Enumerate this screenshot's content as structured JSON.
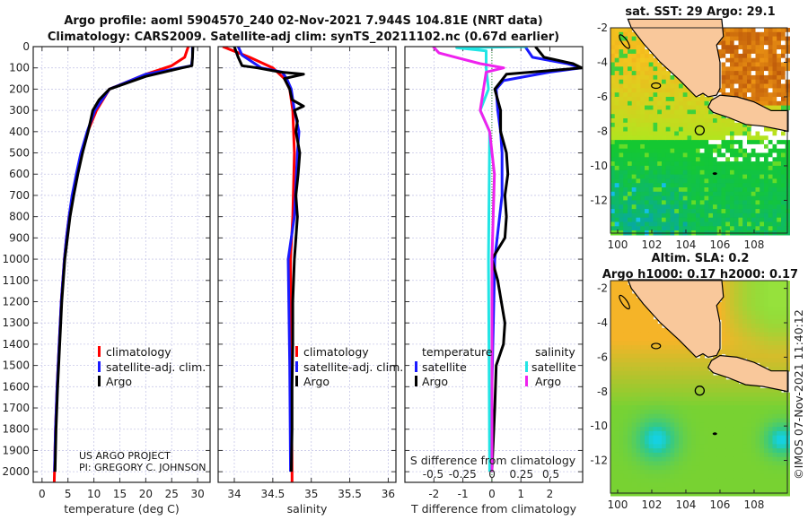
{
  "title": {
    "line1": "Argo profile: aoml 5904570_240 02-Nov-2021 7.944S 104.81E (NRT data)",
    "line2": "Climatology: CARS2009. Satellite-adj clim: synTS_20211102.nc (0.67d earlier)"
  },
  "credit": "US ARGO PROJECT",
  "pi": "PI: GREGORY C. JOHNSON",
  "copyright": "©IMOS 07-Nov-2021 11:40:12",
  "colors": {
    "climatology": "#ff0000",
    "satellite": "#1a1aff",
    "argo": "#000000",
    "s_satellite": "#22e5e5",
    "s_argo": "#ee22ee",
    "land": "#f9c89b"
  },
  "chart_data": [
    {
      "type": "line",
      "name": "temperature",
      "xlabel": "temperature (deg C)",
      "ylabel": "",
      "xlim": [
        -1.7,
        32.4
      ],
      "ylim": [
        2050,
        0
      ],
      "xticks": [
        "0",
        "5",
        "10",
        "15",
        "20",
        "25",
        "30"
      ],
      "xtick_values": [
        0,
        5,
        10,
        15,
        20,
        25,
        30
      ],
      "yticks": [
        "0",
        "100",
        "200",
        "300",
        "400",
        "500",
        "600",
        "700",
        "800",
        "900",
        "1000",
        "1100",
        "1200",
        "1300",
        "1400",
        "1500",
        "1600",
        "1700",
        "1800",
        "1900",
        "2000"
      ],
      "grid": true,
      "legend": [
        "climatology",
        "satellite-adj. clim.",
        "Argo"
      ],
      "series": [
        {
          "name": "climatology",
          "color": "#ff0000",
          "depth": [
            0,
            50,
            90,
            130,
            200,
            300,
            400,
            500,
            600,
            700,
            800,
            900,
            1000,
            1200,
            1400,
            1600,
            1800,
            2000,
            2050
          ],
          "values": [
            28.2,
            27.5,
            25,
            20,
            13,
            10.5,
            8.8,
            7.6,
            6.7,
            5.9,
            5.2,
            4.7,
            4.3,
            3.7,
            3.3,
            2.9,
            2.6,
            2.4,
            2.35
          ]
        },
        {
          "name": "satellite-adj. clim.",
          "color": "#1a1aff",
          "depth": [
            0,
            50,
            90,
            130,
            200,
            300,
            400,
            500,
            600,
            700,
            800,
            900,
            1000,
            1200,
            1400,
            1600,
            1800,
            2000
          ],
          "values": [
            29.0,
            29.0,
            28.8,
            20,
            13,
            10.2,
            8.7,
            7.5,
            6.6,
            5.8,
            5.2,
            4.7,
            4.3,
            3.7,
            3.3,
            2.9,
            2.6,
            2.4
          ]
        },
        {
          "name": "Argo",
          "color": "#000000",
          "depth": [
            0,
            50,
            90,
            100,
            140,
            200,
            250,
            300,
            400,
            500,
            600,
            700,
            800,
            900,
            1000,
            1200,
            1400,
            1600,
            1800,
            2000
          ],
          "values": [
            29.1,
            29.0,
            28.9,
            27,
            20,
            13,
            11,
            9.8,
            8.9,
            7.8,
            6.9,
            6.1,
            5.4,
            4.9,
            4.4,
            3.8,
            3.4,
            3.0,
            2.7,
            2.5
          ]
        }
      ]
    },
    {
      "type": "line",
      "name": "salinity",
      "xlabel": "salinity",
      "xlim": [
        33.79,
        36.1
      ],
      "ylim": [
        2050,
        0
      ],
      "xticks": [
        "34",
        "34.5",
        "35",
        "35.5",
        "36"
      ],
      "xtick_values": [
        34,
        34.5,
        35,
        35.5,
        36
      ],
      "grid": true,
      "legend": [
        "climatology",
        "satellite-adj. clim.",
        "Argo"
      ],
      "series": [
        {
          "name": "climatology",
          "color": "#ff0000",
          "depth": [
            0,
            50,
            100,
            150,
            200,
            300,
            500,
            800,
            1000,
            1500,
            2000,
            2050
          ],
          "values": [
            33.85,
            34.2,
            34.5,
            34.65,
            34.72,
            34.76,
            34.78,
            34.76,
            34.73,
            34.74,
            34.75,
            34.75
          ]
        },
        {
          "name": "satellite-adj. clim.",
          "color": "#1a1aff",
          "depth": [
            0,
            40,
            100,
            120,
            150,
            200,
            300,
            400,
            500,
            800,
            1000,
            1500,
            2000
          ],
          "values": [
            34.05,
            34.1,
            34.35,
            34.62,
            34.68,
            34.74,
            34.78,
            34.84,
            34.82,
            34.78,
            34.7,
            34.72,
            34.73
          ]
        },
        {
          "name": "Argo",
          "color": "#000000",
          "depth": [
            0,
            50,
            90,
            100,
            120,
            130,
            150,
            200,
            250,
            280,
            300,
            350,
            400,
            500,
            600,
            700,
            800,
            900,
            1000,
            1200,
            1400,
            1600,
            1800,
            2000
          ],
          "values": [
            34.0,
            34.05,
            34.1,
            34.3,
            34.6,
            34.9,
            34.65,
            34.72,
            34.75,
            34.9,
            34.78,
            34.82,
            34.8,
            34.85,
            34.83,
            34.8,
            34.82,
            34.8,
            34.78,
            34.76,
            34.76,
            34.75,
            34.75,
            34.74
          ]
        }
      ]
    },
    {
      "type": "line",
      "name": "differences",
      "xlabel": "T difference from climatology",
      "s_label": "S difference from climatology",
      "xlim": [
        -3.0,
        3.13
      ],
      "s_xlim": [
        -0.74,
        0.77
      ],
      "ylim": [
        2050,
        0
      ],
      "xticks": [
        "-2",
        "-1",
        "0",
        "1",
        "2"
      ],
      "xtick_values": [
        -2,
        -1,
        0,
        1,
        2
      ],
      "s_ticks": [
        "-0.5",
        "-0.25",
        "0",
        "0.25",
        "0.5"
      ],
      "s_tick_values": [
        -0.5,
        -0.25,
        0,
        0.25,
        0.5
      ],
      "grid": true,
      "legend": {
        "temperature": "temperature",
        "salinity": "salinity",
        "t_items": [
          "satellite",
          "Argo"
        ],
        "s_items": [
          "satellite",
          "Argo"
        ]
      },
      "series": [
        {
          "name": "T satellite",
          "var": "T",
          "color": "#1a1aff",
          "depth": [
            0,
            50,
            80,
            100,
            120,
            160,
            200,
            300,
            400,
            500,
            700,
            1000,
            1300,
            1600,
            2000
          ],
          "values": [
            1.15,
            1.4,
            2.6,
            3.1,
            2.0,
            0.4,
            0.15,
            0.2,
            0.3,
            0.35,
            0.35,
            0.1,
            0.05,
            0.0,
            0.0
          ]
        },
        {
          "name": "T Argo",
          "var": "T",
          "color": "#000000",
          "depth": [
            0,
            50,
            80,
            100,
            130,
            200,
            300,
            400,
            500,
            600,
            700,
            800,
            900,
            1000,
            1100,
            1300,
            1400,
            1500,
            1700,
            2000
          ],
          "values": [
            1.5,
            1.8,
            2.8,
            3.1,
            0.5,
            0.1,
            0.3,
            0.3,
            0.5,
            0.55,
            0.45,
            0.5,
            0.45,
            0.0,
            0.2,
            0.45,
            0.4,
            0.15,
            0.1,
            0.0
          ]
        },
        {
          "name": "S satellite",
          "var": "S",
          "color": "#22e5e5",
          "depth": [
            0,
            5,
            20,
            100,
            200,
            300,
            400,
            1000,
            2000
          ],
          "values": [
            0.3,
            -0.3,
            -0.05,
            -0.05,
            -0.03,
            -0.1,
            -0.02,
            -0.03,
            -0.02
          ]
        },
        {
          "name": "S Argo",
          "var": "S",
          "color": "#ee22ee",
          "depth": [
            0,
            30,
            80,
            100,
            120,
            300,
            400,
            600,
            1000,
            2000
          ],
          "values": [
            -0.5,
            -0.45,
            -0.1,
            0.1,
            -0.05,
            -0.1,
            -0.02,
            0.02,
            0.0,
            0.0
          ]
        }
      ]
    },
    {
      "type": "heatmap",
      "name": "sst-map",
      "title": "sat. SST: 29 Argo: 29.1",
      "lon_ticks": [
        "100",
        "102",
        "104",
        "106",
        "108"
      ],
      "lon_values": [
        100,
        102,
        104,
        106,
        108
      ],
      "lat_ticks": [
        "-2",
        "-4",
        "-6",
        "-8",
        "-10",
        "-12"
      ],
      "lat_values": [
        -2,
        -4,
        -6,
        -8,
        -10,
        -12
      ],
      "xlim": [
        99.58,
        109.95
      ],
      "ylim": [
        -13.9,
        -2.0
      ],
      "marker": {
        "lon": 104.81,
        "lat": -7.944
      }
    },
    {
      "type": "heatmap",
      "name": "sla-map",
      "title1": "Altim. SLA: 0.2",
      "title2": "Argo h1000: 0.17 h2000: 0.17",
      "lon_ticks": [
        "100",
        "102",
        "104",
        "106",
        "108"
      ],
      "lon_values": [
        100,
        102,
        104,
        106,
        108
      ],
      "lat_ticks": [
        "-2",
        "-4",
        "-6",
        "-8",
        "-10",
        "-12"
      ],
      "lat_values": [
        -2,
        -4,
        -6,
        -8,
        -10,
        -12
      ],
      "xlim": [
        99.58,
        109.95
      ],
      "ylim": [
        -13.9,
        -1.55
      ],
      "marker": {
        "lon": 104.81,
        "lat": -7.944
      }
    }
  ]
}
